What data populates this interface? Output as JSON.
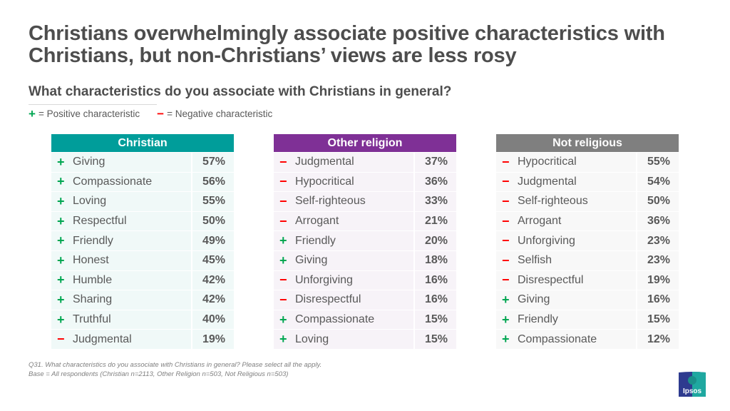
{
  "title": "Christians overwhelmingly associate positive characteristics with Christians, but non-Christians’ views are less rosy",
  "subtitle": "What characteristics do you associate with Christians in general?",
  "legend": {
    "positive_symbol": "+",
    "positive_label": "= Positive characteristic",
    "negative_symbol": "−",
    "negative_label": "= Negative characteristic"
  },
  "colors": {
    "positive": "#00a651",
    "negative": "#ff0000",
    "christian_header": "#009d9a",
    "other_religion_header": "#7f3096",
    "not_religious_header": "#7f7f7f"
  },
  "tables": [
    {
      "header": "Christian",
      "rows": [
        {
          "sign": "+",
          "type": "pos",
          "label": "Giving",
          "value": "57%"
        },
        {
          "sign": "+",
          "type": "pos",
          "label": "Compassionate",
          "value": "56%"
        },
        {
          "sign": "+",
          "type": "pos",
          "label": "Loving",
          "value": "55%"
        },
        {
          "sign": "+",
          "type": "pos",
          "label": "Respectful",
          "value": "50%"
        },
        {
          "sign": "+",
          "type": "pos",
          "label": "Friendly",
          "value": "49%"
        },
        {
          "sign": "+",
          "type": "pos",
          "label": "Honest",
          "value": "45%"
        },
        {
          "sign": "+",
          "type": "pos",
          "label": "Humble",
          "value": "42%"
        },
        {
          "sign": "+",
          "type": "pos",
          "label": "Sharing",
          "value": "42%"
        },
        {
          "sign": "+",
          "type": "pos",
          "label": "Truthful",
          "value": "40%"
        },
        {
          "sign": "−",
          "type": "neg",
          "label": "Judgmental",
          "value": "19%"
        }
      ]
    },
    {
      "header": "Other religion",
      "rows": [
        {
          "sign": "−",
          "type": "neg",
          "label": "Judgmental",
          "value": "37%"
        },
        {
          "sign": "−",
          "type": "neg",
          "label": "Hypocritical",
          "value": "36%"
        },
        {
          "sign": "−",
          "type": "neg",
          "label": "Self-righteous",
          "value": "33%"
        },
        {
          "sign": "−",
          "type": "neg",
          "label": "Arrogant",
          "value": "21%"
        },
        {
          "sign": "+",
          "type": "pos",
          "label": "Friendly",
          "value": "20%"
        },
        {
          "sign": "+",
          "type": "pos",
          "label": "Giving",
          "value": "18%"
        },
        {
          "sign": "−",
          "type": "neg",
          "label": "Unforgiving",
          "value": "16%"
        },
        {
          "sign": "−",
          "type": "neg",
          "label": "Disrespectful",
          "value": "16%"
        },
        {
          "sign": "+",
          "type": "pos",
          "label": "Compassionate",
          "value": "15%"
        },
        {
          "sign": "+",
          "type": "pos",
          "label": "Loving",
          "value": "15%"
        }
      ]
    },
    {
      "header": "Not religious",
      "rows": [
        {
          "sign": "−",
          "type": "neg",
          "label": "Hypocritical",
          "value": "55%"
        },
        {
          "sign": "−",
          "type": "neg",
          "label": "Judgmental",
          "value": "54%"
        },
        {
          "sign": "−",
          "type": "neg",
          "label": "Self-righteous",
          "value": "50%"
        },
        {
          "sign": "−",
          "type": "neg",
          "label": "Arrogant",
          "value": "36%"
        },
        {
          "sign": "−",
          "type": "neg",
          "label": "Unforgiving",
          "value": "23%"
        },
        {
          "sign": "−",
          "type": "neg",
          "label": "Selfish",
          "value": "23%"
        },
        {
          "sign": "−",
          "type": "neg",
          "label": "Disrespectful",
          "value": "19%"
        },
        {
          "sign": "+",
          "type": "pos",
          "label": "Giving",
          "value": "16%"
        },
        {
          "sign": "+",
          "type": "pos",
          "label": "Friendly",
          "value": "15%"
        },
        {
          "sign": "+",
          "type": "pos",
          "label": "Compassionate",
          "value": "12%"
        }
      ]
    }
  ],
  "footnote": {
    "line1": "Q31. What characteristics do you associate with Christians in general? Please select all the apply.",
    "line2": "Base =  All respondents (Christian n=2113, Other Religion n=503, Not Religious n=503)"
  },
  "logo": {
    "text": "Ipsos",
    "icon": "ipsos-logo-icon"
  }
}
